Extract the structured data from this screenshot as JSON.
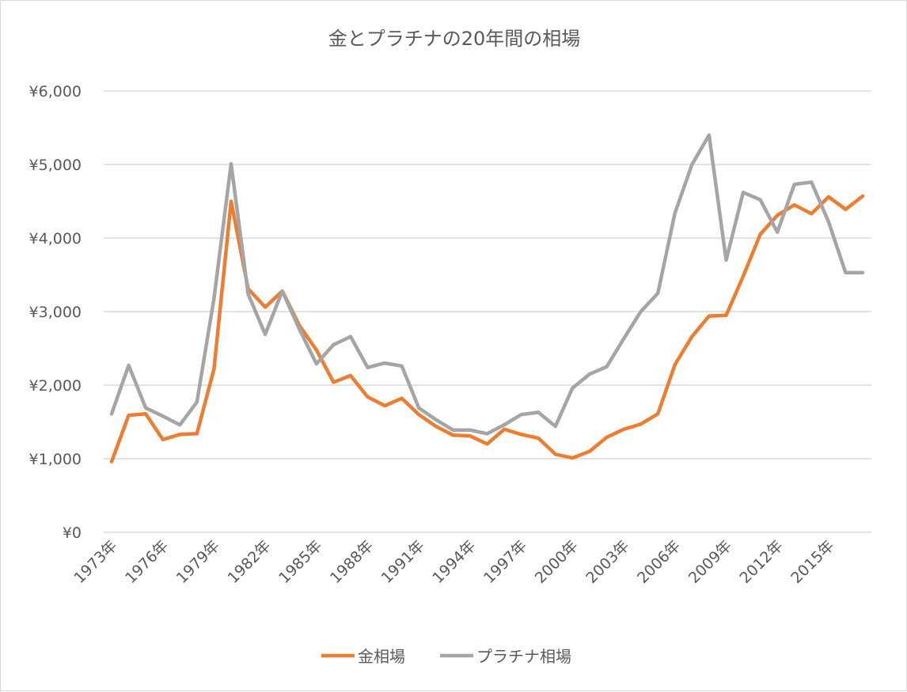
{
  "chart_data": {
    "type": "line",
    "title": "金とプラチナの20年間の相場",
    "xlabel": "",
    "ylabel": "",
    "x": [
      1973,
      1974,
      1975,
      1976,
      1977,
      1978,
      1979,
      1980,
      1981,
      1982,
      1983,
      1984,
      1985,
      1986,
      1987,
      1988,
      1989,
      1990,
      1991,
      1992,
      1993,
      1994,
      1995,
      1996,
      1997,
      1998,
      1999,
      2000,
      2001,
      2002,
      2003,
      2004,
      2005,
      2006,
      2007,
      2008,
      2009,
      2010,
      2011,
      2012,
      2013,
      2014,
      2015,
      2016,
      2017
    ],
    "x_tick_labels": [
      "1973年",
      "1976年",
      "1979年",
      "1982年",
      "1985年",
      "1988年",
      "1991年",
      "1994年",
      "1997年",
      "2000年",
      "2003年",
      "2006年",
      "2009年",
      "2012年",
      "2015年"
    ],
    "y_tick_labels": [
      "¥0",
      "¥1,000",
      "¥2,000",
      "¥3,000",
      "¥4,000",
      "¥5,000",
      "¥6,000"
    ],
    "ylim": [
      0,
      6000
    ],
    "grid": true,
    "legend_position": "bottom",
    "series": [
      {
        "name": "金相場",
        "color": "#ed7d31",
        "values": [
          960,
          1590,
          1610,
          1260,
          1330,
          1340,
          2220,
          4500,
          3310,
          3060,
          3280,
          2810,
          2480,
          2040,
          2130,
          1840,
          1720,
          1820,
          1600,
          1440,
          1320,
          1310,
          1200,
          1400,
          1330,
          1280,
          1060,
          1010,
          1100,
          1290,
          1400,
          1470,
          1610,
          2280,
          2660,
          2940,
          2950,
          3480,
          4050,
          4310,
          4450,
          4330,
          4560,
          4390,
          4570
        ]
      },
      {
        "name": "プラチナ相場",
        "color": "#a5a5a5",
        "values": [
          1610,
          2270,
          1690,
          1580,
          1460,
          1770,
          3180,
          5010,
          3240,
          2690,
          3280,
          2760,
          2290,
          2550,
          2660,
          2240,
          2300,
          2260,
          1690,
          1530,
          1390,
          1390,
          1340,
          1460,
          1600,
          1630,
          1440,
          1960,
          2150,
          2250,
          2630,
          3000,
          3250,
          4340,
          5000,
          5400,
          3700,
          4620,
          4520,
          4080,
          4730,
          4760,
          4220,
          3530,
          3530
        ]
      }
    ]
  }
}
